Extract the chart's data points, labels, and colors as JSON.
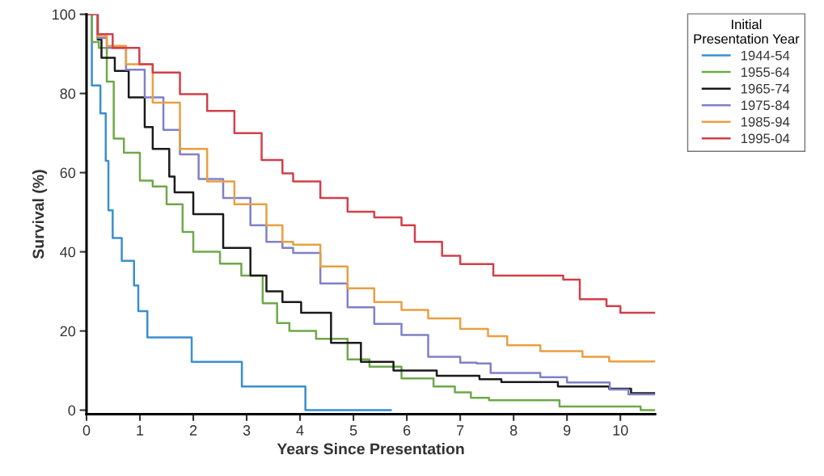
{
  "chart_data": {
    "type": "step",
    "xlabel": "Years Since Presentation",
    "ylabel": "Survival (%)",
    "legend_title": "Initial\nPresentation Year",
    "legend": "right",
    "grid": false,
    "marker": "none",
    "line_style": "solid",
    "xlim": [
      0,
      10.65
    ],
    "ylim": [
      -1,
      100
    ],
    "xticks": [
      0,
      1,
      2,
      3,
      4,
      5,
      6,
      7,
      8,
      9,
      10
    ],
    "yticks": [
      0,
      20,
      40,
      60,
      80,
      100
    ],
    "series": [
      {
        "name": "1944-54",
        "color": "#3a8fd0",
        "x": [
          0,
          0.1,
          0.26,
          0.36,
          0.41,
          0.49,
          0.66,
          0.89,
          0.97,
          1.14,
          1.97,
          2.91,
          4.1,
          5.7
        ],
        "values": [
          100,
          82,
          75,
          63,
          50.5,
          43.5,
          37.7,
          31.5,
          25,
          18.4,
          12.2,
          6,
          0,
          0
        ]
      },
      {
        "name": "1955-64",
        "color": "#6fa84a",
        "x": [
          0,
          0.1,
          0.23,
          0.38,
          0.51,
          0.7,
          1.0,
          1.24,
          1.5,
          1.8,
          2.0,
          2.5,
          2.9,
          3.3,
          3.57,
          3.8,
          4.3,
          4.89,
          5.3,
          5.9,
          6.5,
          6.9,
          7.2,
          7.54,
          8.86,
          10.38,
          10.65
        ],
        "values": [
          100,
          93,
          91.5,
          83,
          68.6,
          65,
          58,
          56.5,
          52,
          45,
          40,
          37,
          34,
          27,
          22,
          20,
          18,
          12.8,
          11,
          8,
          6,
          4.5,
          3.1,
          2.5,
          0.9,
          0,
          0
        ]
      },
      {
        "name": "1965-74",
        "color": "#1a1a1a",
        "x": [
          0,
          0.21,
          0.28,
          0.53,
          0.79,
          1.09,
          1.24,
          1.55,
          1.65,
          2.0,
          2.56,
          3.07,
          3.37,
          3.67,
          4.02,
          4.58,
          5.14,
          5.75,
          6.56,
          7.02,
          7.36,
          7.77,
          8.83,
          9.79,
          10.2,
          10.65
        ],
        "values": [
          100,
          93.6,
          89,
          85.7,
          79,
          71.5,
          66,
          59,
          55,
          49.5,
          41,
          34,
          30,
          27.3,
          24.6,
          17,
          12.2,
          10,
          8.7,
          8.7,
          7.8,
          7.1,
          6,
          5.4,
          4.3,
          4.3
        ]
      },
      {
        "name": "1975-84",
        "color": "#8080c8",
        "x": [
          0,
          0.21,
          0.38,
          0.74,
          1.09,
          1.44,
          1.75,
          2.1,
          2.56,
          3.07,
          3.37,
          3.67,
          3.87,
          4.38,
          4.89,
          5.39,
          5.9,
          6.4,
          7.0,
          7.31,
          7.57,
          8.5,
          9.0,
          9.8,
          10.15,
          10.65
        ],
        "values": [
          100,
          94,
          91.5,
          86,
          79,
          70.8,
          64.6,
          58.4,
          53.6,
          46.7,
          42.5,
          41,
          39.7,
          32,
          26,
          21.8,
          19,
          13.5,
          12,
          11.8,
          9.4,
          8.3,
          7,
          5.2,
          4,
          4
        ]
      },
      {
        "name": "1985-94",
        "color": "#e8a040",
        "x": [
          0,
          0.21,
          0.38,
          0.74,
          1.24,
          1.75,
          2.26,
          2.77,
          3.37,
          3.67,
          3.87,
          4.38,
          4.89,
          5.39,
          5.9,
          6.4,
          7.0,
          7.52,
          7.88,
          8.5,
          9.29,
          9.79,
          10.65
        ],
        "values": [
          100,
          94.5,
          92,
          87.4,
          77.7,
          66,
          57.8,
          52,
          46.7,
          42.5,
          41.8,
          36.3,
          30.8,
          27.3,
          25.3,
          23.2,
          20.5,
          18.7,
          16.4,
          14.9,
          13.5,
          12.3,
          12.3
        ]
      },
      {
        "name": "1995-04",
        "color": "#d0404a",
        "x": [
          0,
          0.21,
          0.49,
          0.99,
          1.24,
          1.75,
          2.26,
          2.77,
          3.28,
          3.67,
          3.87,
          4.38,
          4.89,
          5.39,
          5.9,
          6.15,
          6.66,
          7.0,
          7.62,
          8.93,
          9.24,
          9.74,
          10.0,
          10.65
        ],
        "values": [
          100,
          95,
          91.5,
          87.4,
          85.3,
          79.8,
          75.6,
          70,
          63.2,
          59.8,
          57.8,
          53.6,
          50.1,
          48.7,
          46.7,
          42.5,
          39,
          36.9,
          34,
          33,
          28,
          26.3,
          24.6,
          24.6
        ]
      }
    ]
  }
}
